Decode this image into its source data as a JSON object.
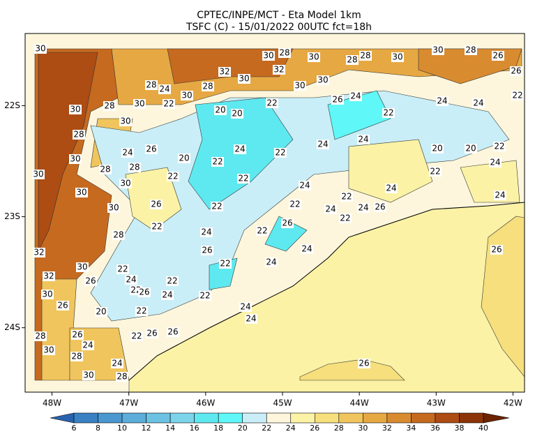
{
  "title": "CPTEC/INPE/MCT -  Eta Model 1km",
  "subtitle": "TSFC (C) - 15/01/2022 00UTC fct=18h",
  "map": {
    "xlim": [
      -48.35,
      -41.85
    ],
    "ylim": [
      -24.58,
      -21.35
    ],
    "xticks": [
      {
        "value": -48,
        "label": "48W"
      },
      {
        "value": -47,
        "label": "47W"
      },
      {
        "value": -46,
        "label": "46W"
      },
      {
        "value": -45,
        "label": "45W"
      },
      {
        "value": -44,
        "label": "44W"
      },
      {
        "value": -43,
        "label": "43W"
      },
      {
        "value": -42,
        "label": "42W"
      }
    ],
    "yticks": [
      {
        "value": -22,
        "label": "22S"
      },
      {
        "value": -23,
        "label": "23S"
      },
      {
        "value": -24,
        "label": "24S"
      }
    ],
    "contour_labels": [
      30,
      30,
      28,
      30,
      28,
      28,
      30,
      30,
      28,
      26,
      32,
      30,
      32,
      30,
      30,
      28,
      24,
      30,
      28,
      26,
      22,
      30,
      28,
      30,
      22,
      20,
      20,
      22,
      26,
      24,
      22,
      24,
      24,
      28,
      30,
      24,
      26,
      30,
      28,
      28,
      20,
      22,
      24,
      22,
      24,
      24,
      20,
      20,
      22,
      30,
      30,
      30,
      22,
      22,
      24,
      22,
      24,
      22,
      24,
      30,
      26,
      22,
      22,
      24,
      24,
      26,
      22,
      24,
      28,
      22,
      24,
      22,
      26,
      24,
      32,
      26,
      26,
      30,
      32,
      22,
      22,
      24,
      26,
      24,
      22,
      30,
      22,
      26,
      24,
      22,
      26,
      20,
      22,
      24,
      24,
      28,
      26,
      22,
      26,
      26,
      30,
      24,
      28,
      24,
      30,
      28,
      26
    ]
  },
  "colorbar": {
    "levels": [
      6,
      8,
      10,
      12,
      14,
      16,
      18,
      20,
      22,
      24,
      26,
      28,
      30,
      32,
      34,
      36,
      38,
      40
    ],
    "colors": [
      "#2a63ad",
      "#3a80c3",
      "#4b97d0",
      "#5cadda",
      "#6cc2e2",
      "#7cd4ea",
      "#5ee9f0",
      "#5ff7f7",
      "#c9eef7",
      "#fdf6dc",
      "#fbf2a6",
      "#f6df7c",
      "#f0c55d",
      "#e6a843",
      "#d98b30",
      "#c66a20",
      "#ad4c13",
      "#8c3408",
      "#6b2300"
    ]
  }
}
